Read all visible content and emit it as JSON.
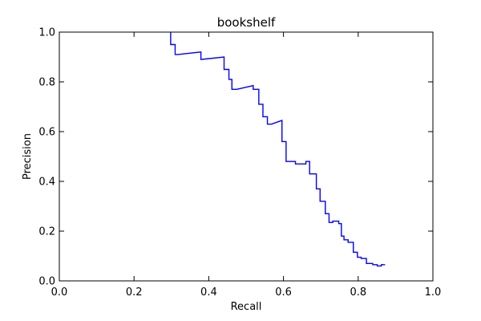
{
  "chart_data": {
    "type": "line",
    "title": "bookshelf",
    "xlabel": "Recall",
    "ylabel": "Precision",
    "xlim": [
      0.0,
      1.0
    ],
    "ylim": [
      0.0,
      1.0
    ],
    "xticks": [
      0.0,
      0.2,
      0.4,
      0.6,
      0.8,
      1.0
    ],
    "yticks": [
      0.0,
      0.2,
      0.4,
      0.6,
      0.8,
      1.0
    ],
    "xtick_labels": [
      "0.0",
      "0.2",
      "0.4",
      "0.6",
      "0.8",
      "1.0"
    ],
    "ytick_labels": [
      "0.0",
      "0.2",
      "0.4",
      "0.6",
      "0.8",
      "1.0"
    ],
    "grid": false,
    "legend": "none",
    "colors": {
      "series": "#0000ff",
      "frame": "#000000"
    },
    "series": [
      {
        "x": [
          0.298,
          0.298,
          0.31,
          0.31,
          0.317,
          0.317,
          0.379,
          0.379,
          0.441,
          0.441,
          0.454,
          0.454,
          0.462,
          0.462,
          0.475,
          0.475,
          0.519,
          0.519,
          0.534,
          0.534,
          0.545,
          0.545,
          0.557,
          0.557,
          0.568,
          0.568,
          0.596,
          0.596,
          0.607,
          0.607,
          0.632,
          0.632,
          0.66,
          0.66,
          0.67,
          0.67,
          0.688,
          0.688,
          0.698,
          0.698,
          0.712,
          0.712,
          0.722,
          0.722,
          0.732,
          0.732,
          0.748,
          0.748,
          0.755,
          0.755,
          0.762,
          0.762,
          0.773,
          0.773,
          0.787,
          0.787,
          0.798,
          0.798,
          0.808,
          0.808,
          0.822,
          0.822,
          0.839,
          0.839,
          0.851,
          0.851,
          0.862,
          0.862,
          0.872
        ],
        "y": [
          1.0,
          0.95,
          0.95,
          0.91,
          0.91,
          0.91,
          0.92,
          0.89,
          0.9,
          0.85,
          0.85,
          0.81,
          0.81,
          0.77,
          0.77,
          0.77,
          0.785,
          0.77,
          0.77,
          0.71,
          0.71,
          0.66,
          0.66,
          0.63,
          0.63,
          0.63,
          0.645,
          0.56,
          0.56,
          0.48,
          0.48,
          0.47,
          0.47,
          0.48,
          0.48,
          0.43,
          0.43,
          0.37,
          0.37,
          0.32,
          0.32,
          0.27,
          0.27,
          0.235,
          0.235,
          0.24,
          0.24,
          0.23,
          0.23,
          0.18,
          0.18,
          0.165,
          0.165,
          0.155,
          0.155,
          0.115,
          0.115,
          0.095,
          0.095,
          0.09,
          0.09,
          0.07,
          0.07,
          0.065,
          0.065,
          0.06,
          0.06,
          0.065,
          0.065
        ]
      }
    ]
  }
}
